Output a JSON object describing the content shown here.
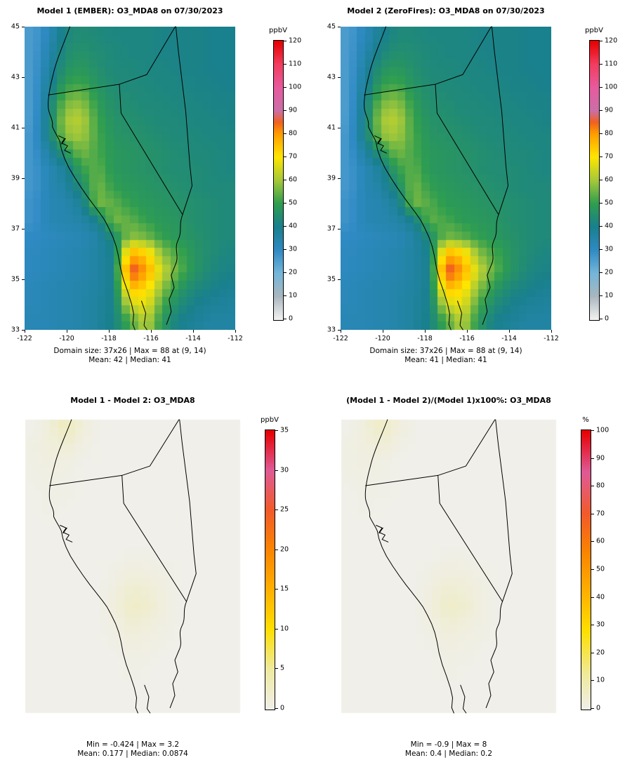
{
  "chart_data": [
    {
      "type": "heatmap",
      "title": "Model 1 (EMBER): O3_MDA8 on 07/30/2023",
      "colorbar_label": "ppbV",
      "scale": {
        "min": 0,
        "max": 120
      },
      "colorbar_ticks": [
        0,
        10,
        20,
        30,
        40,
        50,
        60,
        70,
        80,
        90,
        100,
        110,
        120
      ],
      "x_ticks": [
        -122,
        -120,
        -118,
        -116,
        -114,
        -112
      ],
      "y_ticks": [
        45,
        43,
        41,
        39,
        37,
        35,
        33
      ],
      "x_range": [
        -122,
        -112
      ],
      "y_range": [
        33,
        45
      ],
      "caption_line1": "Domain size: 37x26 | Max = 88 at (9, 14)",
      "caption_line2": "Mean: 42 | Median: 41",
      "color_stops": [
        [
          0,
          "#f2f2f2"
        ],
        [
          10,
          "#a9b7bf"
        ],
        [
          20,
          "#74b6da"
        ],
        [
          30,
          "#2f8ac4"
        ],
        [
          40,
          "#19808d"
        ],
        [
          50,
          "#2f9e4f"
        ],
        [
          60,
          "#a6c93a"
        ],
        [
          70,
          "#ffe600"
        ],
        [
          80,
          "#ff9d00"
        ],
        [
          85,
          "#f2601f"
        ],
        [
          90,
          "#cb6fa8"
        ],
        [
          100,
          "#e85a9e"
        ],
        [
          110,
          "#f23d5e"
        ],
        [
          120,
          "#e60000"
        ]
      ],
      "grid": [
        [
          26,
          32,
          42,
          44,
          43,
          42,
          42,
          42,
          41,
          41,
          41,
          40,
          40
        ],
        [
          26,
          34,
          44,
          46,
          44,
          43,
          42,
          42,
          41,
          41,
          41,
          40,
          40
        ],
        [
          26,
          36,
          46,
          48,
          45,
          43,
          43,
          42,
          42,
          41,
          41,
          40,
          40
        ],
        [
          26,
          38,
          50,
          52,
          47,
          44,
          43,
          43,
          42,
          42,
          41,
          41,
          40
        ],
        [
          26,
          40,
          56,
          58,
          49,
          45,
          44,
          43,
          43,
          42,
          42,
          41,
          41
        ],
        [
          26,
          41,
          60,
          62,
          51,
          46,
          45,
          44,
          43,
          43,
          42,
          42,
          41
        ],
        [
          27,
          41,
          58,
          60,
          52,
          47,
          46,
          45,
          44,
          43,
          43,
          42,
          42
        ],
        [
          27,
          36,
          46,
          56,
          52,
          48,
          47,
          46,
          45,
          44,
          43,
          43,
          42
        ],
        [
          27,
          33,
          38,
          50,
          54,
          48,
          47,
          46,
          45,
          44,
          44,
          43,
          42
        ],
        [
          27,
          33,
          36,
          44,
          56,
          50,
          48,
          47,
          46,
          45,
          44,
          43,
          43
        ],
        [
          28,
          33,
          34,
          38,
          56,
          54,
          50,
          48,
          47,
          46,
          45,
          44,
          43
        ],
        [
          28,
          33,
          34,
          35,
          40,
          56,
          54,
          50,
          48,
          47,
          45,
          44,
          43
        ],
        [
          30,
          31,
          32,
          33,
          35,
          44,
          58,
          56,
          50,
          48,
          46,
          44,
          43
        ],
        [
          31,
          32,
          33,
          34,
          36,
          40,
          78,
          74,
          58,
          52,
          47,
          44,
          42
        ],
        [
          31,
          32,
          33,
          34,
          36,
          40,
          88,
          80,
          64,
          54,
          47,
          43,
          41
        ],
        [
          32,
          33,
          34,
          35,
          36,
          40,
          76,
          72,
          58,
          48,
          43,
          41,
          39
        ],
        [
          32,
          33,
          34,
          35,
          37,
          40,
          64,
          68,
          52,
          44,
          40,
          38,
          37
        ],
        [
          33,
          33,
          34,
          35,
          37,
          41,
          52,
          62,
          48,
          40,
          38,
          36,
          36
        ]
      ]
    },
    {
      "type": "heatmap",
      "title": "Model 2 (ZeroFires): O3_MDA8 on 07/30/2023",
      "colorbar_label": "ppbV",
      "scale": {
        "min": 0,
        "max": 120
      },
      "colorbar_ticks": [
        0,
        10,
        20,
        30,
        40,
        50,
        60,
        70,
        80,
        90,
        100,
        110,
        120
      ],
      "x_ticks": [
        -122,
        -120,
        -118,
        -116,
        -114,
        -112
      ],
      "y_ticks": [
        45,
        43,
        41,
        39,
        37,
        35,
        33
      ],
      "x_range": [
        -122,
        -112
      ],
      "y_range": [
        33,
        45
      ],
      "caption_line1": "Domain size: 37x26 | Max = 88 at (9, 14)",
      "caption_line2": "Mean: 41 | Median: 41",
      "color_stops": [
        [
          0,
          "#f2f2f2"
        ],
        [
          10,
          "#a9b7bf"
        ],
        [
          20,
          "#74b6da"
        ],
        [
          30,
          "#2f8ac4"
        ],
        [
          40,
          "#19808d"
        ],
        [
          50,
          "#2f9e4f"
        ],
        [
          60,
          "#a6c93a"
        ],
        [
          70,
          "#ffe600"
        ],
        [
          80,
          "#ff9d00"
        ],
        [
          85,
          "#f2601f"
        ],
        [
          90,
          "#cb6fa8"
        ],
        [
          100,
          "#e85a9e"
        ],
        [
          110,
          "#f23d5e"
        ],
        [
          120,
          "#e60000"
        ]
      ],
      "grid": [
        [
          26,
          32,
          39,
          43,
          43,
          42,
          42,
          42,
          41,
          41,
          41,
          40,
          40
        ],
        [
          26,
          34,
          42,
          45,
          44,
          43,
          42,
          42,
          41,
          41,
          41,
          40,
          40
        ],
        [
          26,
          36,
          46,
          48,
          45,
          43,
          43,
          42,
          42,
          41,
          41,
          40,
          40
        ],
        [
          26,
          38,
          50,
          52,
          47,
          44,
          43,
          43,
          42,
          42,
          41,
          41,
          40
        ],
        [
          26,
          40,
          56,
          58,
          49,
          45,
          44,
          43,
          43,
          42,
          42,
          41,
          41
        ],
        [
          26,
          41,
          60,
          62,
          51,
          46,
          45,
          44,
          43,
          43,
          42,
          42,
          41
        ],
        [
          27,
          41,
          58,
          60,
          52,
          47,
          46,
          45,
          44,
          43,
          43,
          42,
          42
        ],
        [
          27,
          36,
          46,
          56,
          52,
          48,
          47,
          46,
          45,
          44,
          43,
          43,
          42
        ],
        [
          27,
          33,
          38,
          50,
          54,
          48,
          47,
          46,
          45,
          44,
          44,
          43,
          42
        ],
        [
          27,
          33,
          36,
          44,
          56,
          50,
          48,
          47,
          46,
          45,
          44,
          43,
          43
        ],
        [
          28,
          33,
          34,
          38,
          56,
          53,
          49,
          48,
          47,
          46,
          45,
          44,
          43
        ],
        [
          28,
          33,
          34,
          35,
          40,
          54,
          52,
          49,
          48,
          47,
          45,
          44,
          43
        ],
        [
          30,
          31,
          32,
          33,
          35,
          44,
          56,
          54,
          50,
          48,
          46,
          44,
          43
        ],
        [
          31,
          32,
          33,
          34,
          36,
          40,
          78,
          74,
          58,
          52,
          47,
          44,
          42
        ],
        [
          31,
          32,
          33,
          34,
          36,
          40,
          88,
          80,
          64,
          54,
          47,
          43,
          41
        ],
        [
          32,
          33,
          34,
          35,
          36,
          40,
          76,
          72,
          58,
          48,
          43,
          41,
          39
        ],
        [
          32,
          33,
          34,
          35,
          37,
          40,
          64,
          68,
          52,
          44,
          40,
          38,
          37
        ],
        [
          33,
          33,
          34,
          35,
          37,
          41,
          52,
          62,
          48,
          40,
          38,
          36,
          36
        ]
      ]
    },
    {
      "type": "heatmap",
      "title": "Model 1 - Model 2: O3_MDA8",
      "colorbar_label": "ppbV",
      "scale": {
        "min": 0,
        "max": 35
      },
      "colorbar_ticks": [
        0,
        5,
        10,
        15,
        20,
        25,
        30,
        35
      ],
      "caption_line1": "Min = -0.424 | Max = 3.2",
      "caption_line2": "Mean: 0.177 | Median: 0.0874",
      "color_stops": [
        [
          0,
          "#f0efe9"
        ],
        [
          5,
          "#eeeaa0"
        ],
        [
          10,
          "#ffdf00"
        ],
        [
          15,
          "#ffb000"
        ],
        [
          20,
          "#fb8500"
        ],
        [
          25,
          "#f25a2a"
        ],
        [
          30,
          "#df5a97"
        ],
        [
          35,
          "#e60000"
        ]
      ],
      "grid": [
        [
          0,
          1.2,
          3,
          1,
          0,
          0,
          0,
          0,
          0,
          0,
          0,
          0,
          0
        ],
        [
          0.4,
          1,
          1.6,
          0.5,
          0,
          0,
          0,
          0,
          0,
          0,
          0,
          0,
          0
        ],
        [
          0.3,
          0.7,
          0.5,
          0,
          0,
          0,
          0,
          0,
          0,
          0,
          0,
          0,
          0
        ],
        [
          0.2,
          0.4,
          0.2,
          0,
          0,
          0,
          0,
          0,
          0,
          0,
          0,
          0,
          0
        ],
        [
          0,
          0.3,
          0.2,
          0,
          0,
          0,
          0,
          0,
          0,
          0,
          0,
          0,
          0
        ],
        [
          0,
          0.2,
          0,
          0,
          0,
          0,
          0,
          0,
          0,
          0,
          0,
          0,
          0
        ],
        [
          0,
          0,
          0,
          0,
          0,
          0,
          0,
          0,
          0,
          0,
          0,
          0,
          0
        ],
        [
          0,
          0,
          0,
          0,
          0,
          0,
          0,
          0,
          0,
          0,
          0,
          0,
          0
        ],
        [
          0,
          0,
          0,
          0,
          0,
          0,
          0.3,
          0.2,
          0,
          0,
          0,
          0,
          0
        ],
        [
          0,
          0,
          0,
          0,
          0,
          0.4,
          1,
          0.7,
          0.3,
          0,
          0,
          0,
          0
        ],
        [
          0,
          0,
          0,
          0,
          0,
          0.8,
          1.8,
          1.3,
          0.5,
          0,
          0,
          0,
          0
        ],
        [
          0,
          0,
          0,
          0,
          0,
          1,
          2.4,
          1.7,
          0.6,
          0,
          0,
          0,
          0
        ],
        [
          0,
          0,
          0,
          0,
          0,
          0.6,
          1.5,
          1,
          0.4,
          0,
          0,
          0,
          0
        ],
        [
          0,
          0,
          0,
          0,
          0,
          0.3,
          0.8,
          0.5,
          0.2,
          0,
          0,
          0,
          0
        ],
        [
          0,
          0,
          0,
          0,
          0,
          0,
          0.4,
          0.2,
          0,
          0,
          0,
          0,
          0
        ],
        [
          0,
          0,
          0,
          0,
          0,
          0,
          0.2,
          0,
          0,
          0,
          0,
          0,
          0
        ],
        [
          0,
          0,
          0,
          0,
          0,
          0,
          0,
          0,
          0,
          0,
          0,
          0,
          0
        ],
        [
          0,
          0,
          0,
          0,
          0,
          0,
          0,
          0,
          0,
          0,
          0,
          0,
          0
        ]
      ]
    },
    {
      "type": "heatmap",
      "title": "(Model 1 - Model 2)/(Model 1)x100%: O3_MDA8",
      "colorbar_label": "%",
      "scale": {
        "min": 0,
        "max": 100
      },
      "colorbar_ticks": [
        0,
        10,
        20,
        30,
        40,
        50,
        60,
        70,
        80,
        90,
        100
      ],
      "caption_line1": "Min = -0.9 | Max = 8",
      "caption_line2": "Mean: 0.4 | Median: 0.2",
      "color_stops": [
        [
          0,
          "#f0efe9"
        ],
        [
          12,
          "#eeeaa0"
        ],
        [
          28,
          "#ffdf00"
        ],
        [
          42,
          "#ffb000"
        ],
        [
          56,
          "#fb8500"
        ],
        [
          70,
          "#f25a2a"
        ],
        [
          85,
          "#df5a97"
        ],
        [
          100,
          "#e60000"
        ]
      ],
      "grid": [
        [
          0,
          2.5,
          6,
          2,
          0,
          0,
          0,
          0,
          0,
          0,
          0,
          0,
          0
        ],
        [
          1,
          2,
          3.5,
          1,
          0,
          0,
          0,
          0,
          0,
          0,
          0,
          0,
          0
        ],
        [
          0.8,
          1.5,
          1,
          0,
          0,
          0,
          0,
          0,
          0,
          0,
          0,
          0,
          0
        ],
        [
          0.5,
          1,
          0.5,
          0,
          0,
          0,
          0,
          0,
          0,
          0,
          0,
          0,
          0
        ],
        [
          0,
          0.6,
          0.4,
          0,
          0,
          0,
          0,
          0,
          0,
          0,
          0,
          0,
          0
        ],
        [
          0,
          0.4,
          0,
          0,
          0,
          0,
          0,
          0,
          0,
          0,
          0,
          0,
          0
        ],
        [
          0,
          0,
          0,
          0,
          0,
          0,
          0,
          0,
          0,
          0,
          0,
          0,
          0
        ],
        [
          0,
          0,
          0,
          0,
          0,
          0,
          0,
          0,
          0,
          0,
          0,
          0,
          0
        ],
        [
          0,
          0,
          0,
          0,
          0,
          0,
          0.8,
          0.5,
          0,
          0,
          0,
          0,
          0
        ],
        [
          0,
          0,
          0,
          0,
          0,
          1,
          2.2,
          1.6,
          0.7,
          0,
          0,
          0,
          0
        ],
        [
          0,
          0,
          0,
          0,
          0,
          1.8,
          4,
          3,
          1.2,
          0,
          0,
          0,
          0
        ],
        [
          0,
          0,
          0,
          0,
          0,
          2.2,
          5.5,
          4,
          1.4,
          0,
          0,
          0,
          0
        ],
        [
          0,
          0,
          0,
          0,
          0,
          1.4,
          3.4,
          2.2,
          1,
          0,
          0,
          0,
          0
        ],
        [
          0,
          0,
          0,
          0,
          0,
          0.7,
          1.8,
          1.2,
          0.5,
          0,
          0,
          0,
          0
        ],
        [
          0,
          0,
          0,
          0,
          0,
          0,
          0.9,
          0.5,
          0,
          0,
          0,
          0,
          0
        ],
        [
          0,
          0,
          0,
          0,
          0,
          0,
          0.5,
          0,
          0,
          0,
          0,
          0,
          0
        ],
        [
          0,
          0,
          0,
          0,
          0,
          0,
          0,
          0,
          0,
          0,
          0,
          0,
          0
        ],
        [
          0,
          0,
          0,
          0,
          0,
          0,
          0,
          0,
          0,
          0,
          0,
          0,
          0
        ]
      ]
    }
  ]
}
